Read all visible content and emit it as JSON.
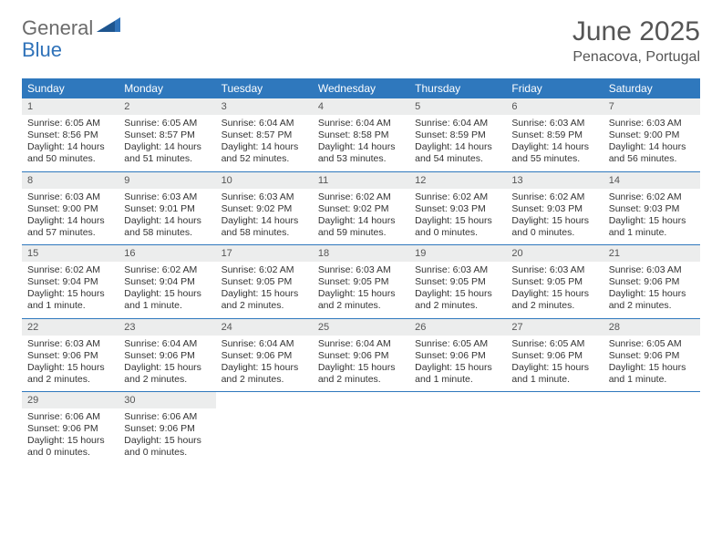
{
  "logo": {
    "general": "General",
    "blue": "Blue"
  },
  "title": "June 2025",
  "location": "Penacova, Portugal",
  "colors": {
    "header_bg": "#2f78bd",
    "header_text": "#ffffff",
    "daynum_bg": "#eceded",
    "text": "#333333",
    "rule": "#2f78bd",
    "logo_gray": "#6b6b6b",
    "logo_blue": "#2f72b9"
  },
  "day_names": [
    "Sunday",
    "Monday",
    "Tuesday",
    "Wednesday",
    "Thursday",
    "Friday",
    "Saturday"
  ],
  "weeks": [
    [
      {
        "n": "1",
        "sr": "Sunrise: 6:05 AM",
        "ss": "Sunset: 8:56 PM",
        "dl1": "Daylight: 14 hours",
        "dl2": "and 50 minutes."
      },
      {
        "n": "2",
        "sr": "Sunrise: 6:05 AM",
        "ss": "Sunset: 8:57 PM",
        "dl1": "Daylight: 14 hours",
        "dl2": "and 51 minutes."
      },
      {
        "n": "3",
        "sr": "Sunrise: 6:04 AM",
        "ss": "Sunset: 8:57 PM",
        "dl1": "Daylight: 14 hours",
        "dl2": "and 52 minutes."
      },
      {
        "n": "4",
        "sr": "Sunrise: 6:04 AM",
        "ss": "Sunset: 8:58 PM",
        "dl1": "Daylight: 14 hours",
        "dl2": "and 53 minutes."
      },
      {
        "n": "5",
        "sr": "Sunrise: 6:04 AM",
        "ss": "Sunset: 8:59 PM",
        "dl1": "Daylight: 14 hours",
        "dl2": "and 54 minutes."
      },
      {
        "n": "6",
        "sr": "Sunrise: 6:03 AM",
        "ss": "Sunset: 8:59 PM",
        "dl1": "Daylight: 14 hours",
        "dl2": "and 55 minutes."
      },
      {
        "n": "7",
        "sr": "Sunrise: 6:03 AM",
        "ss": "Sunset: 9:00 PM",
        "dl1": "Daylight: 14 hours",
        "dl2": "and 56 minutes."
      }
    ],
    [
      {
        "n": "8",
        "sr": "Sunrise: 6:03 AM",
        "ss": "Sunset: 9:00 PM",
        "dl1": "Daylight: 14 hours",
        "dl2": "and 57 minutes."
      },
      {
        "n": "9",
        "sr": "Sunrise: 6:03 AM",
        "ss": "Sunset: 9:01 PM",
        "dl1": "Daylight: 14 hours",
        "dl2": "and 58 minutes."
      },
      {
        "n": "10",
        "sr": "Sunrise: 6:03 AM",
        "ss": "Sunset: 9:02 PM",
        "dl1": "Daylight: 14 hours",
        "dl2": "and 58 minutes."
      },
      {
        "n": "11",
        "sr": "Sunrise: 6:02 AM",
        "ss": "Sunset: 9:02 PM",
        "dl1": "Daylight: 14 hours",
        "dl2": "and 59 minutes."
      },
      {
        "n": "12",
        "sr": "Sunrise: 6:02 AM",
        "ss": "Sunset: 9:03 PM",
        "dl1": "Daylight: 15 hours",
        "dl2": "and 0 minutes."
      },
      {
        "n": "13",
        "sr": "Sunrise: 6:02 AM",
        "ss": "Sunset: 9:03 PM",
        "dl1": "Daylight: 15 hours",
        "dl2": "and 0 minutes."
      },
      {
        "n": "14",
        "sr": "Sunrise: 6:02 AM",
        "ss": "Sunset: 9:03 PM",
        "dl1": "Daylight: 15 hours",
        "dl2": "and 1 minute."
      }
    ],
    [
      {
        "n": "15",
        "sr": "Sunrise: 6:02 AM",
        "ss": "Sunset: 9:04 PM",
        "dl1": "Daylight: 15 hours",
        "dl2": "and 1 minute."
      },
      {
        "n": "16",
        "sr": "Sunrise: 6:02 AM",
        "ss": "Sunset: 9:04 PM",
        "dl1": "Daylight: 15 hours",
        "dl2": "and 1 minute."
      },
      {
        "n": "17",
        "sr": "Sunrise: 6:02 AM",
        "ss": "Sunset: 9:05 PM",
        "dl1": "Daylight: 15 hours",
        "dl2": "and 2 minutes."
      },
      {
        "n": "18",
        "sr": "Sunrise: 6:03 AM",
        "ss": "Sunset: 9:05 PM",
        "dl1": "Daylight: 15 hours",
        "dl2": "and 2 minutes."
      },
      {
        "n": "19",
        "sr": "Sunrise: 6:03 AM",
        "ss": "Sunset: 9:05 PM",
        "dl1": "Daylight: 15 hours",
        "dl2": "and 2 minutes."
      },
      {
        "n": "20",
        "sr": "Sunrise: 6:03 AM",
        "ss": "Sunset: 9:05 PM",
        "dl1": "Daylight: 15 hours",
        "dl2": "and 2 minutes."
      },
      {
        "n": "21",
        "sr": "Sunrise: 6:03 AM",
        "ss": "Sunset: 9:06 PM",
        "dl1": "Daylight: 15 hours",
        "dl2": "and 2 minutes."
      }
    ],
    [
      {
        "n": "22",
        "sr": "Sunrise: 6:03 AM",
        "ss": "Sunset: 9:06 PM",
        "dl1": "Daylight: 15 hours",
        "dl2": "and 2 minutes."
      },
      {
        "n": "23",
        "sr": "Sunrise: 6:04 AM",
        "ss": "Sunset: 9:06 PM",
        "dl1": "Daylight: 15 hours",
        "dl2": "and 2 minutes."
      },
      {
        "n": "24",
        "sr": "Sunrise: 6:04 AM",
        "ss": "Sunset: 9:06 PM",
        "dl1": "Daylight: 15 hours",
        "dl2": "and 2 minutes."
      },
      {
        "n": "25",
        "sr": "Sunrise: 6:04 AM",
        "ss": "Sunset: 9:06 PM",
        "dl1": "Daylight: 15 hours",
        "dl2": "and 2 minutes."
      },
      {
        "n": "26",
        "sr": "Sunrise: 6:05 AM",
        "ss": "Sunset: 9:06 PM",
        "dl1": "Daylight: 15 hours",
        "dl2": "and 1 minute."
      },
      {
        "n": "27",
        "sr": "Sunrise: 6:05 AM",
        "ss": "Sunset: 9:06 PM",
        "dl1": "Daylight: 15 hours",
        "dl2": "and 1 minute."
      },
      {
        "n": "28",
        "sr": "Sunrise: 6:05 AM",
        "ss": "Sunset: 9:06 PM",
        "dl1": "Daylight: 15 hours",
        "dl2": "and 1 minute."
      }
    ],
    [
      {
        "n": "29",
        "sr": "Sunrise: 6:06 AM",
        "ss": "Sunset: 9:06 PM",
        "dl1": "Daylight: 15 hours",
        "dl2": "and 0 minutes."
      },
      {
        "n": "30",
        "sr": "Sunrise: 6:06 AM",
        "ss": "Sunset: 9:06 PM",
        "dl1": "Daylight: 15 hours",
        "dl2": "and 0 minutes."
      },
      null,
      null,
      null,
      null,
      null
    ]
  ]
}
